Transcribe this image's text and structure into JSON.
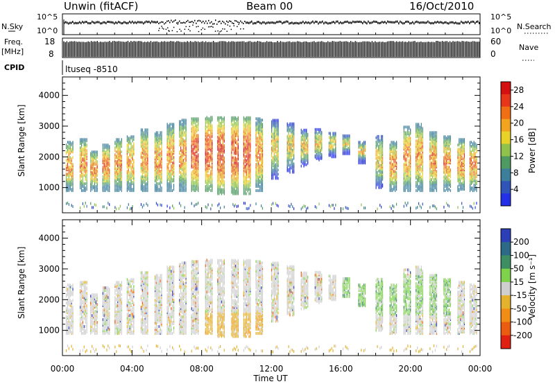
{
  "header": {
    "station": "Unwin (fitACF)",
    "beam": "Beam 00",
    "date": "16/Oct/2010"
  },
  "param_panels": {
    "nsky_label": "N.Sky",
    "nsearch_label": "N.Search",
    "nsky_ticks": [
      "10^5",
      "10^0"
    ],
    "nsearch_ticks": [
      "10^5",
      "10^0"
    ],
    "freq_label": "Freq.",
    "freq_unit": "[MHz]",
    "freq_ticks": [
      "18",
      "8"
    ],
    "nave_label": "Nave",
    "nave_ticks": [
      "60",
      "0"
    ],
    "cpid_label": "CPID",
    "cpid_text": "ltuseq -8510"
  },
  "colors": {
    "power_scale": [
      "#2330e8",
      "#2f55b8",
      "#3d7f9b",
      "#4f9a60",
      "#8fc24a",
      "#e8d228",
      "#f2a41e",
      "#f06e14",
      "#e8361a",
      "#d41010"
    ],
    "velocity_scale": [
      "#2c3fb7",
      "#2d6a86",
      "#3e8e64",
      "#7ed34a",
      "#cfcfcf",
      "#e4b22c",
      "#f08d12",
      "#ec5c10",
      "#e02010"
    ],
    "series": "#000000",
    "frame": "#000000"
  },
  "chart_data": [
    {
      "type": "line",
      "title": "N.Sky / N.Search",
      "x": [
        "00:00",
        "24:00"
      ],
      "y_scale": "log",
      "ylim": [
        1,
        100000
      ],
      "annotation": "noise level traces plotted as dense black points near 10^5, dipping around 06:00-10:00 UT"
    },
    {
      "type": "bar",
      "title": "Freq. / Nave",
      "ylim_left": [
        8,
        18
      ],
      "ylim_right": [
        0,
        60
      ],
      "annotation": "dense vertical bars spanning the full 00:00-24:00 UT interval"
    },
    {
      "type": "heatmap",
      "xlabel": "Time UT",
      "ylabel": "Slant Range [km]",
      "colorbar_label": "Power [dB]",
      "x_ticks": [
        "00:00",
        "04:00",
        "08:00",
        "12:00",
        "16:00",
        "20:00",
        "00:00"
      ],
      "y_ticks": [
        "1000",
        "2000",
        "3000",
        "4000"
      ],
      "xlim_hours": [
        0,
        24
      ],
      "ylim": [
        180,
        4600
      ],
      "colorbar_ticks": [
        "4",
        "8",
        "12",
        "16",
        "20",
        "24",
        "28"
      ],
      "colorbar_range": [
        0,
        30
      ],
      "bursts_hours": [
        0.2,
        1.0,
        1.6,
        2.3,
        3.0,
        3.7,
        4.5,
        5.3,
        6.0,
        6.7,
        7.4,
        8.2,
        8.9,
        9.7,
        10.4,
        11.1,
        12.0,
        12.9,
        13.7,
        14.5,
        15.3,
        16.1,
        17.0,
        18.0,
        18.8,
        19.6,
        20.3,
        21.1,
        21.9,
        22.7,
        23.4
      ],
      "echo_range_km": [
        [
          1000,
          2500
        ],
        [
          1000,
          2600
        ],
        [
          1000,
          2200
        ],
        [
          1000,
          2400
        ],
        [
          1000,
          2600
        ],
        [
          1000,
          2700
        ],
        [
          1000,
          2900
        ],
        [
          1000,
          2800
        ],
        [
          1000,
          3100
        ],
        [
          1000,
          3200
        ],
        [
          1000,
          3250
        ],
        [
          1000,
          3300
        ],
        [
          900,
          3300
        ],
        [
          900,
          3300
        ],
        [
          900,
          3300
        ],
        [
          1000,
          3250
        ],
        [
          1400,
          3200
        ],
        [
          1600,
          3100
        ],
        [
          1800,
          2900
        ],
        [
          2000,
          2900
        ],
        [
          2100,
          2800
        ],
        [
          2200,
          2700
        ],
        [
          1900,
          2500
        ],
        [
          1100,
          2700
        ],
        [
          1000,
          2500
        ],
        [
          1000,
          3000
        ],
        [
          1000,
          3100
        ],
        [
          1000,
          2800
        ],
        [
          1000,
          2700
        ],
        [
          1000,
          2600
        ],
        [
          1000,
          2500
        ]
      ]
    },
    {
      "type": "heatmap",
      "xlabel": "Time UT",
      "ylabel": "Slant Range [km]",
      "colorbar_label": "Velocity [m s⁻¹]",
      "x_ticks": [
        "00:00",
        "04:00",
        "08:00",
        "12:00",
        "16:00",
        "20:00",
        "00:00"
      ],
      "y_ticks": [
        "1000",
        "2000",
        "3000",
        "4000"
      ],
      "xlim_hours": [
        0,
        24
      ],
      "ylim": [
        180,
        4600
      ],
      "colorbar_ticks": [
        "200",
        "100",
        "50",
        "15",
        "-15",
        "-50",
        "-100",
        "-200"
      ],
      "annotation": "mostly gray near-zero velocities; orange (negative) echoes below ~1500 km around 08:00-12:00 UT; green (positive) echoes around 16:00-22:00 UT"
    }
  ],
  "legend": {
    "power_label": "Power [dB]",
    "power_ticks": [
      "28",
      "24",
      "20",
      "16",
      "12",
      "8",
      "4"
    ],
    "velocity_label": "Velocity [m s⁻¹]",
    "velocity_ticks": [
      "200",
      "100",
      "50",
      "15",
      "-15",
      "-50",
      "-100",
      "-200"
    ]
  },
  "axes": {
    "xlabel": "Time UT",
    "ylabel": "Slant Range [km]",
    "x_ticks": [
      "00:00",
      "04:00",
      "08:00",
      "12:00",
      "16:00",
      "20:00",
      "00:00"
    ],
    "y_ticks": [
      "1000",
      "2000",
      "3000",
      "4000"
    ]
  }
}
